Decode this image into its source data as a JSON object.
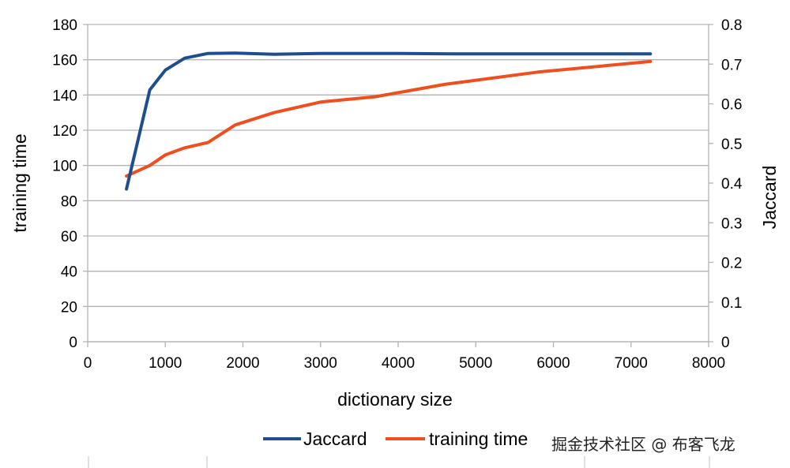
{
  "chart_data": {
    "type": "line",
    "title": "",
    "xlabel": "dictionary size",
    "ylabel_left": "training time",
    "ylabel_right": "Jaccard",
    "xlim": [
      0,
      8000
    ],
    "xticks": [
      0,
      1000,
      2000,
      3000,
      4000,
      5000,
      6000,
      7000,
      8000
    ],
    "ylim_left": [
      0,
      180
    ],
    "yticks_left": [
      0,
      20,
      40,
      60,
      80,
      100,
      120,
      140,
      160,
      180
    ],
    "ylim_right": [
      0,
      0.8
    ],
    "yticks_right": [
      0,
      0.1,
      0.2,
      0.3,
      0.4,
      0.5,
      0.6,
      0.7,
      0.8
    ],
    "grid": true,
    "legend_position": "bottom",
    "series": [
      {
        "name": "Jaccard",
        "axis": "right",
        "color": "#1f4e8c",
        "x": [
          500,
          650,
          800,
          1000,
          1250,
          1550,
          1900,
          2400,
          3000,
          4000,
          4700,
          5500,
          6500,
          7250
        ],
        "y": [
          0.385,
          0.51,
          0.635,
          0.685,
          0.715,
          0.727,
          0.728,
          0.725,
          0.727,
          0.727,
          0.726,
          0.726,
          0.726,
          0.726
        ]
      },
      {
        "name": "training time",
        "axis": "left",
        "color": "#f04e1e",
        "x": [
          500,
          800,
          1000,
          1250,
          1550,
          1900,
          2400,
          3000,
          3700,
          4600,
          5800,
          7250
        ],
        "y": [
          94,
          100,
          106,
          110,
          113,
          123,
          130,
          136,
          139,
          146,
          153,
          159
        ]
      }
    ]
  },
  "watermark": "掘金技术社区 @ 布客飞龙"
}
